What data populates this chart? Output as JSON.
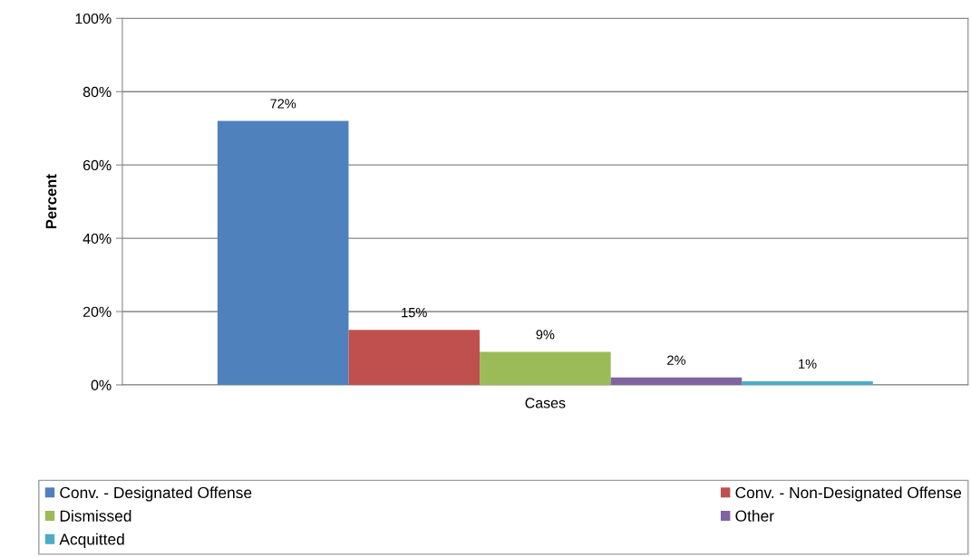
{
  "chart_data": {
    "type": "bar",
    "categories": [
      "Cases"
    ],
    "ylabel": "Percent",
    "series": [
      {
        "name": "Conv. - Designated Offense",
        "color": "#4f81bd",
        "values": [
          72
        ],
        "value_labels": [
          "72%"
        ]
      },
      {
        "name": "Conv. - Non-Designated Offense",
        "color": "#c0504d",
        "values": [
          15
        ],
        "value_labels": [
          "15%"
        ]
      },
      {
        "name": "Dismissed",
        "color": "#9bbb59",
        "values": [
          9
        ],
        "value_labels": [
          "9%"
        ]
      },
      {
        "name": "Other",
        "color": "#8064a2",
        "values": [
          2
        ],
        "value_labels": [
          "2%"
        ]
      },
      {
        "name": "Acquitted",
        "color": "#4bacc6",
        "values": [
          1
        ],
        "value_labels": [
          "1%"
        ]
      }
    ],
    "ylim": [
      0,
      100
    ],
    "yticks": [
      {
        "value": 0,
        "label": "0%"
      },
      {
        "value": 20,
        "label": "20%"
      },
      {
        "value": 40,
        "label": "40%"
      },
      {
        "value": 60,
        "label": "60%"
      },
      {
        "value": 80,
        "label": "80%"
      },
      {
        "value": 100,
        "label": "100%"
      }
    ],
    "grid": "y",
    "legend": "bottom"
  }
}
